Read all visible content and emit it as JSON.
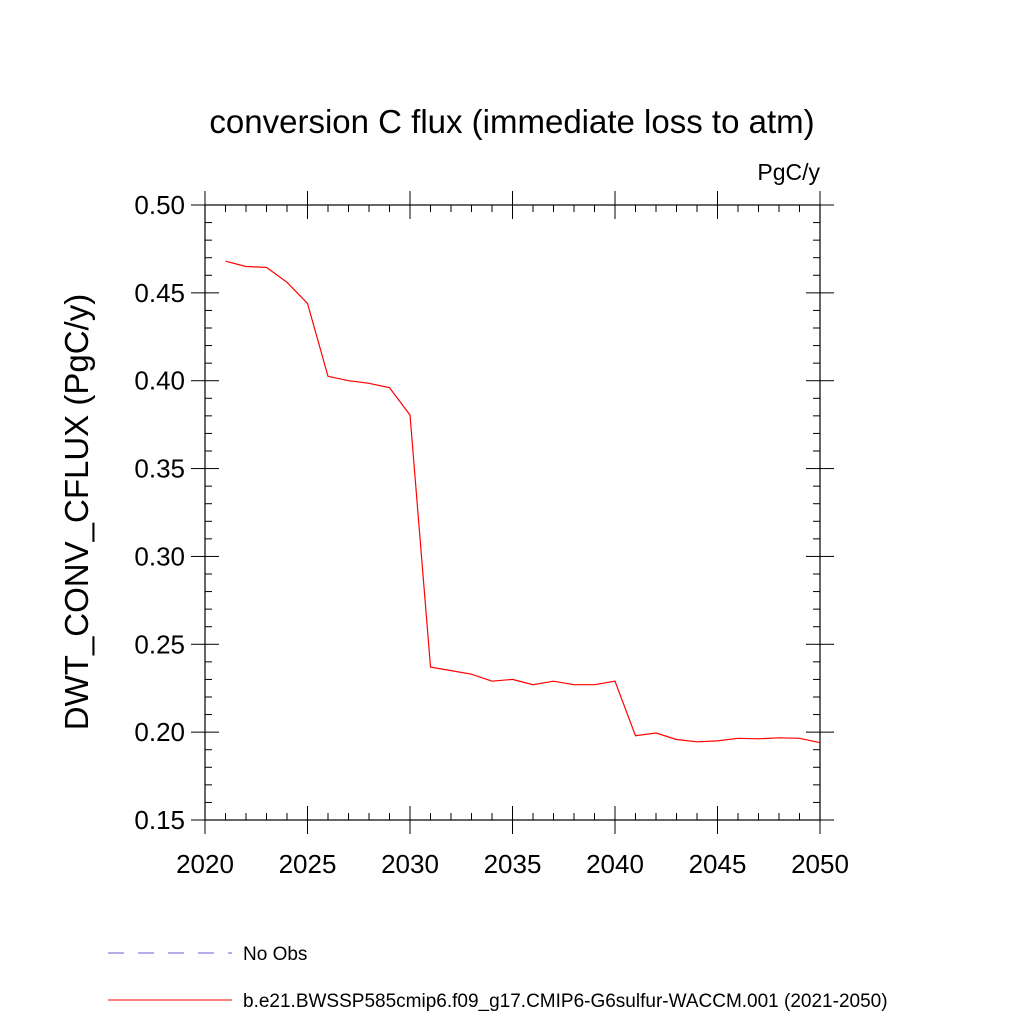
{
  "chart_data": {
    "type": "line",
    "title": "conversion C flux (immediate loss to atm)",
    "units": "PgC/y",
    "ylabel": "DWT_CONV_CFLUX  (PgC/y)",
    "xlabel": "",
    "xlim": [
      2020,
      2050
    ],
    "ylim": [
      0.15,
      0.5
    ],
    "xticks": [
      2020,
      2025,
      2030,
      2035,
      2040,
      2045,
      2050
    ],
    "xtick_labels": [
      "2020",
      "2025",
      "2030",
      "2035",
      "2040",
      "2045",
      "2050"
    ],
    "yticks": [
      0.15,
      0.2,
      0.25,
      0.3,
      0.35,
      0.4,
      0.45,
      0.5
    ],
    "ytick_labels": [
      "0.15",
      "0.20",
      "0.25",
      "0.30",
      "0.35",
      "0.40",
      "0.45",
      "0.50"
    ],
    "grid": false,
    "legend_position": "bottom",
    "series": [
      {
        "name": "b.e21.BWSSP585cmip6.f09_g17.CMIP6-G6sulfur-WACCM.001 (2021-2050)",
        "color": "#ff0000",
        "style": "solid",
        "x": [
          2021,
          2022,
          2023,
          2024,
          2025,
          2026,
          2027,
          2028,
          2029,
          2030,
          2031,
          2032,
          2033,
          2034,
          2035,
          2036,
          2037,
          2038,
          2039,
          2040,
          2041,
          2042,
          2043,
          2044,
          2045,
          2046,
          2047,
          2048,
          2049,
          2050
        ],
        "y": [
          0.468,
          0.465,
          0.4645,
          0.456,
          0.444,
          0.4025,
          0.4,
          0.3985,
          0.396,
          0.3805,
          0.237,
          0.235,
          0.233,
          0.229,
          0.23,
          0.227,
          0.229,
          0.227,
          0.227,
          0.229,
          0.198,
          0.1995,
          0.1958,
          0.1945,
          0.195,
          0.1965,
          0.1962,
          0.1968,
          0.1965,
          0.194
        ]
      }
    ],
    "legend": [
      {
        "label": "No Obs",
        "color": "#6a5acd",
        "style": "dashed"
      },
      {
        "label": "b.e21.BWSSP585cmip6.f09_g17.CMIP6-G6sulfur-WACCM.001 (2021-2050)",
        "color": "#ff0000",
        "style": "solid"
      }
    ]
  }
}
